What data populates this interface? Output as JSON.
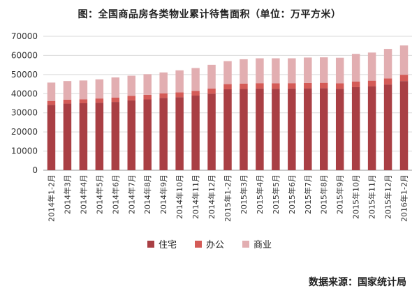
{
  "chart_data": {
    "type": "bar",
    "stacked": true,
    "title": "图：全国商品房各类物业累计待售面积（单位：万平方米）",
    "source": "数据来源：国家统计局",
    "xlabel": "",
    "ylabel": "",
    "ylim": [
      0,
      70000
    ],
    "yticks": [
      0,
      10000,
      20000,
      30000,
      40000,
      50000,
      60000,
      70000
    ],
    "grid": true,
    "legend_position": "bottom",
    "categories": [
      "2014年1-2月",
      "2014年3月",
      "2014年4月",
      "2014年5月",
      "2014年6月",
      "2014年7月",
      "2014年8月",
      "2014年9月",
      "2014年10月",
      "2014年11月",
      "2014年12月",
      "2015年1-2月",
      "2015年3月",
      "2015年4月",
      "2015年5月",
      "2015年6月",
      "2015年7月",
      "2015年8月",
      "2015年9月",
      "2015年10月",
      "2015年11月",
      "2015年12月",
      "2016年1-2月"
    ],
    "series": [
      {
        "name": "住宅",
        "color": "#a93f44",
        "values": [
          34200,
          34800,
          35000,
          35300,
          35700,
          36500,
          37000,
          37800,
          38200,
          39000,
          40000,
          42300,
          42500,
          42700,
          42600,
          42700,
          42800,
          42900,
          42600,
          43400,
          43900,
          44800,
          46600
        ]
      },
      {
        "name": "办公",
        "color": "#d45b57",
        "values": [
          2000,
          2100,
          2100,
          2200,
          2300,
          2400,
          2400,
          2400,
          2500,
          2500,
          2700,
          2700,
          2800,
          2800,
          2800,
          2800,
          2800,
          2800,
          2800,
          2900,
          2900,
          3200,
          3300
        ]
      },
      {
        "name": "商业",
        "color": "#e2aeb1",
        "values": [
          9600,
          9700,
          9800,
          10000,
          10500,
          10500,
          10800,
          10900,
          11500,
          11900,
          12400,
          12000,
          12700,
          13000,
          13100,
          13000,
          13300,
          13300,
          13400,
          14500,
          14700,
          15400,
          15300
        ]
      }
    ]
  }
}
